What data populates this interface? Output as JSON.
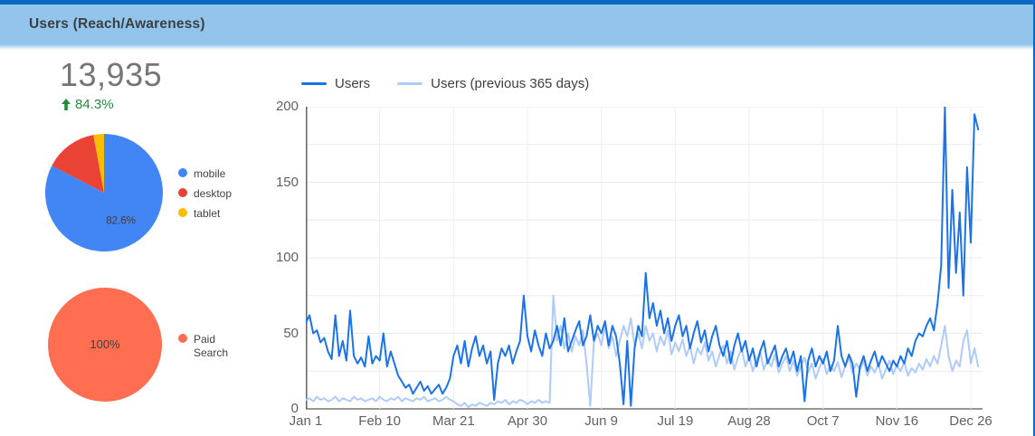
{
  "header": {
    "title": "Users (Reach/Awareness)"
  },
  "scorecard": {
    "value": "13,935",
    "delta": "84.3%",
    "delta_direction": "up",
    "delta_color": "#1e8e3e",
    "value_color": "#757575"
  },
  "colors": {
    "accent_bar": "#0b69c3",
    "header_band": "#93c4ec",
    "grid": "#ebebeb",
    "axis": "#757575"
  },
  "chart_data": [
    {
      "id": "users_timeseries",
      "type": "line",
      "title": "",
      "legend_position": "top",
      "grid": true,
      "ylim": [
        0,
        200
      ],
      "y_ticks": [
        0,
        50,
        100,
        150,
        200
      ],
      "y_tick_labels": [
        "0",
        "50",
        "100",
        "150",
        "200"
      ],
      "y_minor_step": 25,
      "x_tick_labels": [
        "Jan 1",
        "Feb 10",
        "Mar 21",
        "Apr 30",
        "Jun 9",
        "Jul 19",
        "Aug 28",
        "Oct 7",
        "Nov 16",
        "Dec 26"
      ],
      "x_tick_days": [
        0,
        40,
        80,
        120,
        160,
        200,
        240,
        280,
        320,
        360
      ],
      "days_per_point": 2,
      "series": [
        {
          "name": "Users (previous 365 days)",
          "color": "#aecbfa",
          "values": [
            6,
            7,
            5,
            8,
            6,
            7,
            5,
            6,
            8,
            5,
            7,
            6,
            5,
            8,
            6,
            7,
            5,
            6,
            7,
            5,
            8,
            6,
            5,
            7,
            6,
            8,
            5,
            7,
            6,
            5,
            7,
            6,
            8,
            5,
            6,
            7,
            5,
            6,
            8,
            6,
            5,
            3,
            2,
            4,
            1,
            3,
            2,
            4,
            3,
            2,
            4,
            3,
            5,
            4,
            6,
            3,
            5,
            4,
            6,
            5,
            3,
            5,
            4,
            6,
            4,
            5,
            4,
            75,
            45,
            55,
            40,
            50,
            38,
            48,
            42,
            52,
            30,
            2,
            45,
            50,
            42,
            55,
            40,
            48,
            35,
            45,
            55,
            48,
            60,
            42,
            50,
            40,
            55,
            45,
            50,
            38,
            48,
            42,
            52,
            36,
            44,
            38,
            46,
            35,
            42,
            30,
            40,
            36,
            44,
            32,
            38,
            28,
            36,
            42,
            30,
            38,
            26,
            34,
            40,
            28,
            35,
            25,
            32,
            38,
            26,
            33,
            28,
            36,
            24,
            30,
            35,
            25,
            32,
            22,
            28,
            34,
            24,
            30,
            20,
            27,
            33,
            23,
            29,
            25,
            31,
            21,
            28,
            34,
            24,
            30,
            26,
            32,
            22,
            28,
            24,
            30,
            20,
            26,
            32,
            23,
            29,
            25,
            31,
            22,
            27,
            24,
            30,
            26,
            33,
            28,
            35,
            30,
            42,
            55,
            35,
            25,
            32,
            28,
            45,
            52,
            30,
            40,
            28
          ]
        },
        {
          "name": "Users",
          "color": "#1a73e8",
          "values": [
            57,
            62,
            50,
            52,
            44,
            47,
            38,
            33,
            62,
            35,
            45,
            32,
            65,
            35,
            30,
            34,
            28,
            48,
            30,
            35,
            32,
            50,
            28,
            38,
            30,
            22,
            18,
            14,
            16,
            10,
            14,
            18,
            12,
            15,
            10,
            13,
            16,
            10,
            14,
            20,
            35,
            42,
            30,
            45,
            28,
            40,
            48,
            35,
            42,
            30,
            38,
            6,
            30,
            40,
            35,
            42,
            30,
            38,
            45,
            75,
            48,
            38,
            52,
            42,
            35,
            50,
            40,
            45,
            55,
            42,
            60,
            38,
            45,
            52,
            58,
            42,
            48,
            62,
            45,
            55,
            50,
            58,
            42,
            55,
            48,
            30,
            3,
            45,
            2,
            40,
            55,
            48,
            90,
            60,
            70,
            55,
            65,
            50,
            60,
            45,
            55,
            62,
            48,
            55,
            40,
            50,
            58,
            44,
            52,
            38,
            48,
            55,
            42,
            35,
            45,
            30,
            42,
            50,
            38,
            45,
            32,
            40,
            28,
            38,
            45,
            30,
            36,
            42,
            28,
            35,
            40,
            30,
            38,
            25,
            35,
            5,
            32,
            40,
            28,
            35,
            30,
            38,
            25,
            32,
            55,
            35,
            28,
            36,
            30,
            8,
            28,
            35,
            25,
            32,
            38,
            28,
            35,
            30,
            25,
            32,
            28,
            35,
            30,
            40,
            35,
            45,
            50,
            48,
            55,
            60,
            52,
            70,
            95,
            200,
            80,
            145,
            90,
            130,
            75,
            160,
            110,
            195,
            185
          ]
        }
      ]
    },
    {
      "id": "device_pie",
      "type": "pie",
      "inner_label": "82.6%",
      "slices": [
        {
          "label": "mobile",
          "percent": 82.6,
          "color": "#4285f4"
        },
        {
          "label": "desktop",
          "percent": 14.5,
          "color": "#ea4335"
        },
        {
          "label": "tablet",
          "percent": 2.9,
          "color": "#fbbc04"
        }
      ]
    },
    {
      "id": "channel_pie",
      "type": "pie",
      "inner_label": "100%",
      "slices": [
        {
          "label": "Paid Search",
          "percent": 100,
          "color": "#ff6e50"
        }
      ]
    }
  ]
}
